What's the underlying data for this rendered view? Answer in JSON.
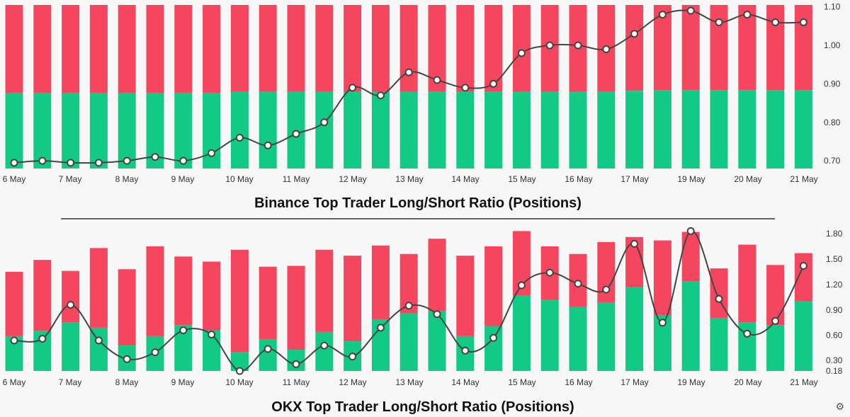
{
  "colors": {
    "long": "#12c985",
    "short": "#f4475f",
    "line": "#444444",
    "marker_fill": "#ffffff",
    "divider": "#333333"
  },
  "chart_data": [
    {
      "type": "bar",
      "title": "Binance Top Trader Long/Short Ratio (Positions)",
      "x_tick_labels": [
        "6 May",
        "7 May",
        "8 May",
        "9 May",
        "10 May",
        "11 May",
        "12 May",
        "13 May",
        "14 May",
        "15 May",
        "16 May",
        "17 May",
        "19 May",
        "20 May",
        "21 May"
      ],
      "y_ticks": [
        "0.70",
        "0.80",
        "0.90",
        "1.00",
        "1.10"
      ],
      "ylim": [
        0.68,
        1.105
      ],
      "long_fraction": [
        0.46,
        0.46,
        0.46,
        0.46,
        0.46,
        0.46,
        0.46,
        0.46,
        0.47,
        0.47,
        0.47,
        0.47,
        0.47,
        0.47,
        0.47,
        0.47,
        0.47,
        0.47,
        0.47,
        0.47,
        0.47,
        0.47,
        0.475,
        0.48,
        0.48,
        0.48,
        0.48,
        0.48,
        0.48,
        0.48,
        0.48,
        0.48,
        0.48,
        0.48,
        0.48,
        0.48,
        0.48,
        0.48
      ],
      "series": [
        {
          "name": "Long/Short Ratio",
          "values": [
            0.695,
            0.7,
            0.695,
            0.695,
            0.7,
            0.71,
            0.7,
            0.72,
            0.76,
            0.74,
            0.77,
            0.8,
            0.89,
            0.87,
            0.93,
            0.91,
            0.89,
            0.9,
            0.98,
            1.0,
            1.0,
            0.99,
            1.03,
            1.08,
            1.09,
            1.06,
            1.08,
            1.06,
            1.06
          ]
        }
      ],
      "x_offset": 0.02
    },
    {
      "type": "bar",
      "title": "OKX Top Trader Long/Short Ratio (Positions)",
      "x_tick_labels": [
        "6 May",
        "7 May",
        "8 May",
        "9 May",
        "10 May",
        "11 May",
        "12 May",
        "13 May",
        "14 May",
        "15 May",
        "16 May",
        "17 May",
        "19 May",
        "20 May",
        "21 May"
      ],
      "y_ticks": [
        "0.18",
        "0.30",
        "0.60",
        "0.90",
        "1.20",
        "1.50",
        "1.80"
      ],
      "ylim": [
        0.18,
        1.85
      ],
      "bar_totals": [
        1.35,
        1.49,
        1.36,
        1.63,
        1.38,
        1.65,
        1.53,
        1.47,
        1.61,
        1.41,
        1.42,
        1.61,
        1.54,
        1.66,
        1.56,
        1.74,
        1.54,
        1.65,
        1.83,
        1.65,
        1.56,
        1.7,
        1.76,
        1.72,
        1.82,
        1.39,
        1.67,
        1.43,
        1.57
      ],
      "bar_long": [
        0.59,
        0.65,
        0.75,
        0.69,
        0.48,
        0.59,
        0.72,
        0.66,
        0.4,
        0.55,
        0.43,
        0.64,
        0.53,
        0.79,
        0.86,
        0.89,
        0.59,
        0.71,
        1.07,
        1.02,
        0.94,
        0.99,
        1.17,
        0.84,
        1.24,
        0.8,
        0.75,
        0.72,
        1.0
      ],
      "series": [
        {
          "name": "Long/Short Ratio",
          "values": [
            0.54,
            0.56,
            0.96,
            0.54,
            0.32,
            0.4,
            0.66,
            0.61,
            0.18,
            0.44,
            0.26,
            0.48,
            0.35,
            0.69,
            0.95,
            0.85,
            0.42,
            0.57,
            1.19,
            1.34,
            1.21,
            1.14,
            1.68,
            0.75,
            1.83,
            1.03,
            0.62,
            0.77,
            1.42
          ]
        }
      ]
    }
  ],
  "icons": {
    "settings": "gear-icon"
  },
  "gear_glyph": "⚙"
}
